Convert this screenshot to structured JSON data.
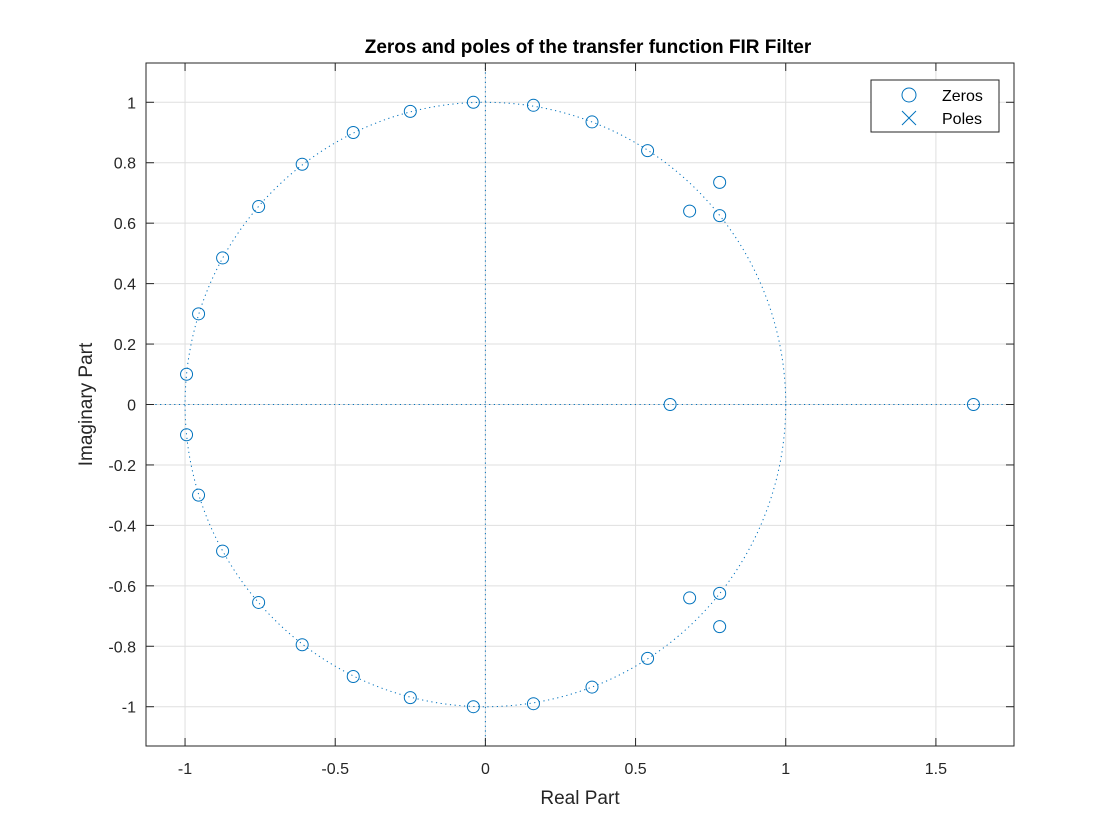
{
  "chart_data": {
    "type": "scatter",
    "title": "Zeros and poles of the transfer function FIR Filter",
    "xlabel": "Real Part",
    "ylabel": "Imaginary Part",
    "xlim": [
      -1.13,
      1.76
    ],
    "ylim": [
      -1.13,
      1.13
    ],
    "xticks": [
      -1,
      -0.5,
      0,
      0.5,
      1,
      1.5
    ],
    "xtick_labels": [
      "-1",
      "-0.5",
      "0",
      "0.5",
      "1",
      "1.5"
    ],
    "yticks": [
      -1,
      -0.8,
      -0.6,
      -0.4,
      -0.2,
      0,
      0.2,
      0.4,
      0.6,
      0.8,
      1
    ],
    "ytick_labels": [
      "-1",
      "-0.8",
      "-0.6",
      "-0.4",
      "-0.2",
      "0",
      "0.2",
      "0.4",
      "0.6",
      "0.8",
      "1"
    ],
    "grid": true,
    "unit_circle": true,
    "legend_position": "top-right",
    "color": "#0072BD",
    "series": [
      {
        "name": "Zeros",
        "marker": "circle",
        "points": [
          [
            -0.04,
            1.0
          ],
          [
            0.16,
            0.99
          ],
          [
            0.355,
            0.935
          ],
          [
            0.54,
            0.84
          ],
          [
            0.68,
            0.64
          ],
          [
            0.78,
            0.735
          ],
          [
            0.78,
            0.625
          ],
          [
            -0.25,
            0.97
          ],
          [
            -0.44,
            0.9
          ],
          [
            -0.61,
            0.795
          ],
          [
            -0.755,
            0.655
          ],
          [
            -0.875,
            0.485
          ],
          [
            -0.955,
            0.3
          ],
          [
            -0.995,
            0.1
          ],
          [
            -0.995,
            -0.1
          ],
          [
            -0.955,
            -0.3
          ],
          [
            -0.875,
            -0.485
          ],
          [
            -0.755,
            -0.655
          ],
          [
            -0.61,
            -0.795
          ],
          [
            -0.44,
            -0.9
          ],
          [
            -0.25,
            -0.97
          ],
          [
            -0.04,
            -1.0
          ],
          [
            0.16,
            -0.99
          ],
          [
            0.355,
            -0.935
          ],
          [
            0.54,
            -0.84
          ],
          [
            0.68,
            -0.64
          ],
          [
            0.78,
            -0.735
          ],
          [
            0.78,
            -0.625
          ],
          [
            0.615,
            0.0
          ],
          [
            1.625,
            0.0
          ]
        ]
      },
      {
        "name": "Poles",
        "marker": "x",
        "points": []
      }
    ]
  }
}
